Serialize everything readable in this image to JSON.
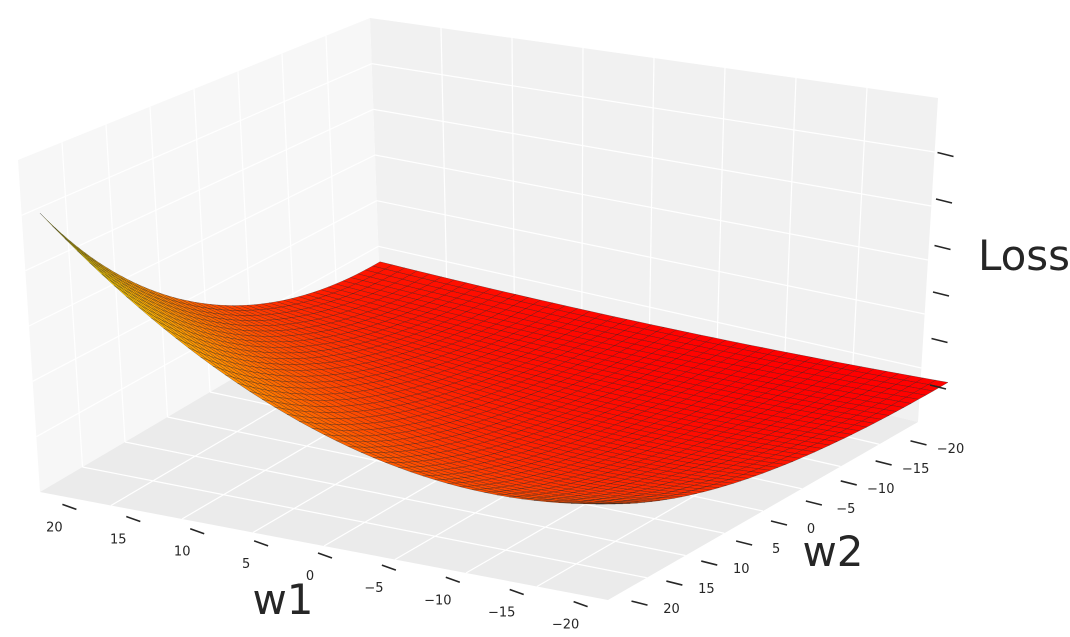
{
  "chart_data": {
    "type": "surface",
    "xlabel": "w1",
    "ylabel": "w2",
    "zlabel": "Loss",
    "x_ticks": [
      "20",
      "15",
      "10",
      "5",
      "0",
      "−5",
      "−10",
      "−15",
      "−20"
    ],
    "y_ticks": [
      "−20",
      "−15",
      "−10",
      "−5",
      "0",
      "5",
      "10",
      "15",
      "20"
    ],
    "z_tick_count": 6,
    "z_tick_labels_shown": false,
    "x_range": [
      -20,
      20
    ],
    "y_range": [
      -20,
      20
    ],
    "grid": true,
    "colormap": "autumn",
    "colors": {
      "low": "#ff0000",
      "high": "#ffff00",
      "pane_back": "#f2f2f2",
      "pane_left": "#f7f7f7",
      "pane_floor": "#ececec",
      "grid": "#ffffff",
      "mesh_line": "#1a1a1a"
    },
    "surface_shape": "convex bowl, minimum near w1 = -12, w2 = 20; rises steeply toward w1 = -20, w2 = -20 and toward w1 = 20, w2 = 20"
  }
}
